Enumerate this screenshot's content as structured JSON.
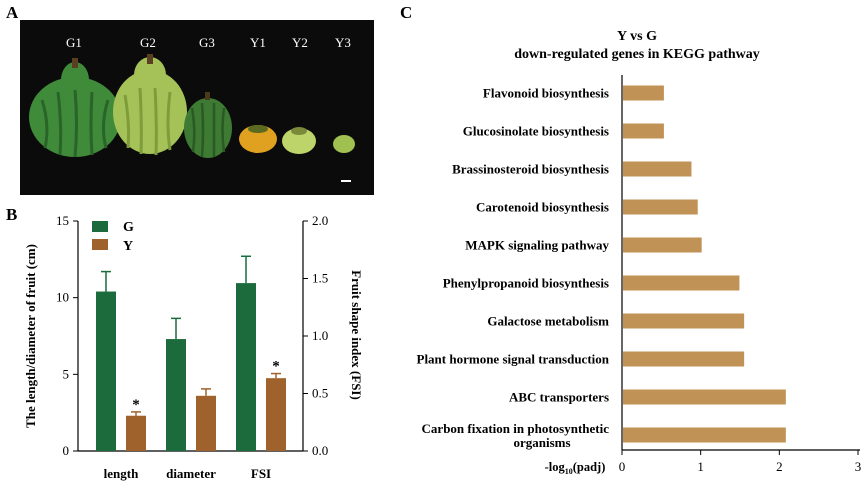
{
  "panels": {
    "a_label": "A",
    "b_label": "B",
    "c_label": "C"
  },
  "photo": {
    "labels": [
      "G1",
      "G2",
      "G3",
      "Y1",
      "Y2",
      "Y3"
    ],
    "background": "#0b0b0b",
    "fruits": [
      {
        "name": "G1",
        "color": "#3f8b3a"
      },
      {
        "name": "G2",
        "color": "#a4c258"
      },
      {
        "name": "G3",
        "color": "#3e7a34"
      },
      {
        "name": "Y1",
        "color": "#e0a020"
      },
      {
        "name": "Y2",
        "color": "#bcd46a"
      },
      {
        "name": "Y3",
        "color": "#a0c050"
      }
    ]
  },
  "chart_data": [
    {
      "type": "bar",
      "categories": [
        "length",
        "diameter",
        "FSI"
      ],
      "series": [
        {
          "name": "G",
          "color": "#1b6b3c",
          "values": [
            10.4,
            7.3,
            10.95
          ],
          "errors": [
            1.3,
            1.35,
            1.75
          ]
        },
        {
          "name": "Y",
          "color": "#a0622d",
          "values": [
            2.3,
            3.6,
            4.75
          ],
          "errors": [
            0.25,
            0.45,
            0.3
          ]
        }
      ],
      "significance": [
        "*",
        "",
        "*"
      ],
      "ylabel": "The length/diameter of fruit (cm)",
      "ylabel_right": "Fruit shape index (FSI)",
      "ylim": [
        0,
        15
      ],
      "ylim_right": [
        0,
        2.0
      ],
      "yticks": [
        "0",
        "5",
        "10",
        "15"
      ],
      "yticks_right": [
        "0.0",
        "0.5",
        "1.0",
        "1.5",
        "2.0"
      ],
      "legend_position": "top-left"
    },
    {
      "type": "bar",
      "orientation": "horizontal",
      "title_line1": "Y vs G",
      "title_line2": "down-regulated genes in KEGG pathway",
      "categories": [
        "Flavonoid biosynthesis",
        "Glucosinolate biosynthesis",
        "Brassinosteroid biosynthesis",
        "Carotenoid biosynthesis",
        "MAPK signaling pathway",
        "Phenylpropanoid biosynthesis",
        "Galactose metabolism",
        "Plant hormone signal transduction",
        "ABC transporters",
        "Carbon fixation in photosynthetic organisms"
      ],
      "category_lines": [
        [
          "Flavonoid biosynthesis"
        ],
        [
          "Glucosinolate biosynthesis"
        ],
        [
          "Brassinosteroid biosynthesis"
        ],
        [
          "Carotenoid biosynthesis"
        ],
        [
          "MAPK signaling pathway"
        ],
        [
          "Phenylpropanoid biosynthesis"
        ],
        [
          "Galactose metabolism"
        ],
        [
          "Plant hormone signal transduction"
        ],
        [
          "ABC transporters"
        ],
        [
          "Carbon fixation in photosynthetic",
          "organisms"
        ]
      ],
      "values": [
        0.52,
        0.52,
        0.87,
        0.95,
        1.0,
        1.48,
        1.54,
        1.54,
        2.07,
        2.07
      ],
      "color": "#c09256",
      "xlabel": "-log10(padj)",
      "xlim": [
        0,
        3
      ],
      "xticks": [
        "0",
        "1",
        "2",
        "3"
      ]
    }
  ]
}
